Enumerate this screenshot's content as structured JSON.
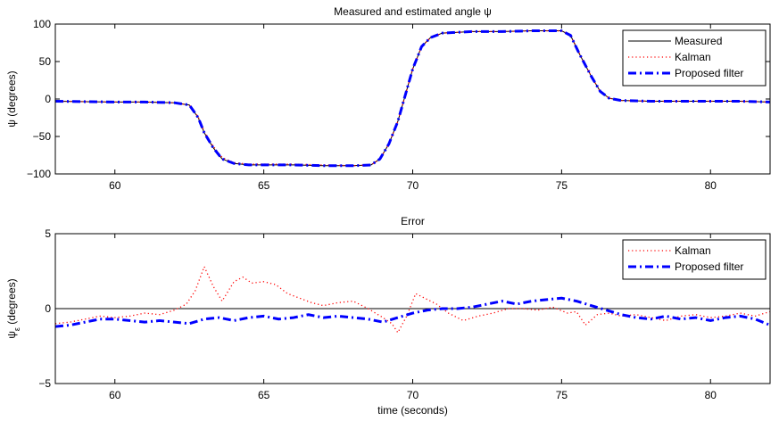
{
  "chart_data": [
    {
      "type": "line",
      "title": "Measured and estimated angle ψ",
      "xlabel": "",
      "ylabel": "ψ (degrees)",
      "xlim": [
        58,
        82
      ],
      "ylim": [
        -100,
        100
      ],
      "xticks": [
        60,
        65,
        70,
        75,
        80
      ],
      "yticks": [
        -100,
        -50,
        0,
        50,
        100
      ],
      "grid": false,
      "legend_position": "top-right",
      "series": [
        {
          "name": "Measured",
          "color": "#000000",
          "style": "solid",
          "x": [
            58,
            59,
            60,
            61,
            62,
            62.5,
            62.8,
            63,
            63.3,
            63.6,
            64,
            64.5,
            65,
            66,
            67,
            68,
            68.6,
            68.9,
            69.2,
            69.5,
            70,
            70.3,
            70.6,
            71,
            72,
            73,
            74,
            75,
            75.3,
            75.6,
            76,
            76.3,
            76.6,
            77,
            78,
            79,
            80,
            81,
            82
          ],
          "values": [
            -3,
            -3.5,
            -4,
            -4,
            -5,
            -8,
            -25,
            -45,
            -65,
            -80,
            -86,
            -88,
            -88,
            -88,
            -89,
            -89,
            -88,
            -80,
            -60,
            -30,
            40,
            70,
            82,
            88,
            90,
            90,
            91,
            91,
            85,
            60,
            30,
            10,
            1,
            -2,
            -3,
            -3,
            -3,
            -3,
            -4
          ]
        },
        {
          "name": "Kalman",
          "color": "#ff0000",
          "style": "dotted",
          "x": [
            58,
            59,
            60,
            61,
            62,
            62.5,
            62.8,
            63,
            63.3,
            63.6,
            64,
            64.5,
            65,
            66,
            67,
            68,
            68.6,
            68.9,
            69.2,
            69.5,
            70,
            70.3,
            70.6,
            71,
            72,
            73,
            74,
            75,
            75.3,
            75.6,
            76,
            76.3,
            76.6,
            77,
            78,
            79,
            80,
            81,
            82
          ],
          "values": [
            -3,
            -3.5,
            -4,
            -4,
            -5,
            -8,
            -24,
            -43,
            -63,
            -78,
            -85,
            -87,
            -87,
            -87,
            -88,
            -89,
            -88,
            -80,
            -60,
            -30,
            40,
            70,
            82,
            88,
            90,
            90,
            91,
            91,
            85,
            61,
            30,
            10,
            1,
            -2,
            -3,
            -3,
            -3,
            -3,
            -4
          ]
        },
        {
          "name": "Proposed filter",
          "color": "#0000ff",
          "style": "dashdot",
          "x": [
            58,
            59,
            60,
            61,
            62,
            62.5,
            62.8,
            63,
            63.3,
            63.6,
            64,
            64.5,
            65,
            66,
            67,
            68,
            68.6,
            68.9,
            69.2,
            69.5,
            70,
            70.3,
            70.6,
            71,
            72,
            73,
            74,
            75,
            75.3,
            75.6,
            76,
            76.3,
            76.6,
            77,
            78,
            79,
            80,
            81,
            82
          ],
          "values": [
            -3,
            -3.5,
            -4,
            -4,
            -5,
            -8,
            -25,
            -45,
            -65,
            -80,
            -86,
            -88,
            -88,
            -88,
            -89,
            -89,
            -88,
            -80,
            -60,
            -30,
            40,
            70,
            82,
            88,
            90,
            90,
            91,
            91,
            85,
            60,
            30,
            10,
            1,
            -2,
            -3,
            -3,
            -3,
            -3,
            -4
          ]
        }
      ]
    },
    {
      "type": "line",
      "title": "Error",
      "xlabel": "time (seconds)",
      "ylabel": "ψε (degrees)",
      "ylabel_main": "ψ",
      "ylabel_sub": "ε",
      "ylabel_rest": " (degrees)",
      "xlim": [
        58,
        82
      ],
      "ylim": [
        -5,
        5
      ],
      "xticks": [
        60,
        65,
        70,
        75,
        80
      ],
      "yticks": [
        -5,
        0,
        5
      ],
      "grid": false,
      "zero_line": true,
      "legend_position": "top-right",
      "series": [
        {
          "name": "Kalman",
          "color": "#ff0000",
          "style": "dotted",
          "x": [
            58,
            58.5,
            59,
            59.5,
            60,
            60.5,
            61,
            61.5,
            62,
            62.4,
            62.7,
            63,
            63.3,
            63.6,
            64,
            64.3,
            64.6,
            65,
            65.4,
            65.8,
            66.2,
            66.6,
            67,
            67.5,
            68,
            68.5,
            69,
            69.3,
            69.5,
            69.8,
            70.1,
            70.4,
            70.8,
            71.2,
            71.7,
            72.2,
            72.7,
            73.2,
            73.7,
            74.2,
            74.7,
            75.2,
            75.5,
            75.8,
            76.2,
            76.6,
            77,
            77.5,
            78,
            78.5,
            79,
            79.5,
            80,
            80.5,
            81,
            81.5,
            82
          ],
          "values": [
            -1,
            -0.9,
            -0.7,
            -0.5,
            -0.6,
            -0.5,
            -0.3,
            -0.4,
            -0.1,
            0.3,
            1.2,
            2.8,
            1.5,
            0.5,
            1.8,
            2.1,
            1.7,
            1.8,
            1.6,
            1.0,
            0.7,
            0.4,
            0.2,
            0.4,
            0.5,
            0,
            -0.6,
            -1.0,
            -1.6,
            -0.5,
            1.0,
            0.7,
            0.3,
            -0.3,
            -0.8,
            -0.5,
            -0.3,
            0,
            0,
            -0.1,
            0.1,
            -0.3,
            -0.2,
            -1.1,
            -0.4,
            -0.3,
            -0.5,
            -0.4,
            -0.6,
            -0.8,
            -0.5,
            -0.4,
            -0.6,
            -0.5,
            -0.3,
            -0.5,
            -0.2
          ]
        },
        {
          "name": "Proposed filter",
          "color": "#0000ff",
          "style": "dashdot",
          "x": [
            58,
            58.5,
            59,
            59.5,
            60,
            60.5,
            61,
            61.5,
            62,
            62.5,
            63,
            63.5,
            64,
            64.5,
            65,
            65.5,
            66,
            66.5,
            67,
            67.5,
            68,
            68.5,
            69,
            69.5,
            70,
            70.5,
            71,
            71.5,
            72,
            72.5,
            73,
            73.5,
            74,
            74.5,
            75,
            75.5,
            76,
            76.5,
            77,
            77.5,
            78,
            78.5,
            79,
            79.5,
            80,
            80.5,
            81,
            81.5,
            82
          ],
          "values": [
            -1.2,
            -1.1,
            -0.9,
            -0.7,
            -0.7,
            -0.8,
            -0.9,
            -0.8,
            -0.9,
            -1.0,
            -0.7,
            -0.6,
            -0.8,
            -0.6,
            -0.5,
            -0.7,
            -0.6,
            -0.4,
            -0.6,
            -0.5,
            -0.6,
            -0.7,
            -0.9,
            -0.6,
            -0.3,
            -0.1,
            0,
            0,
            0.1,
            0.3,
            0.5,
            0.3,
            0.5,
            0.6,
            0.7,
            0.5,
            0.2,
            -0.1,
            -0.4,
            -0.6,
            -0.7,
            -0.5,
            -0.7,
            -0.6,
            -0.8,
            -0.6,
            -0.5,
            -0.7,
            -1.1
          ]
        }
      ]
    }
  ]
}
